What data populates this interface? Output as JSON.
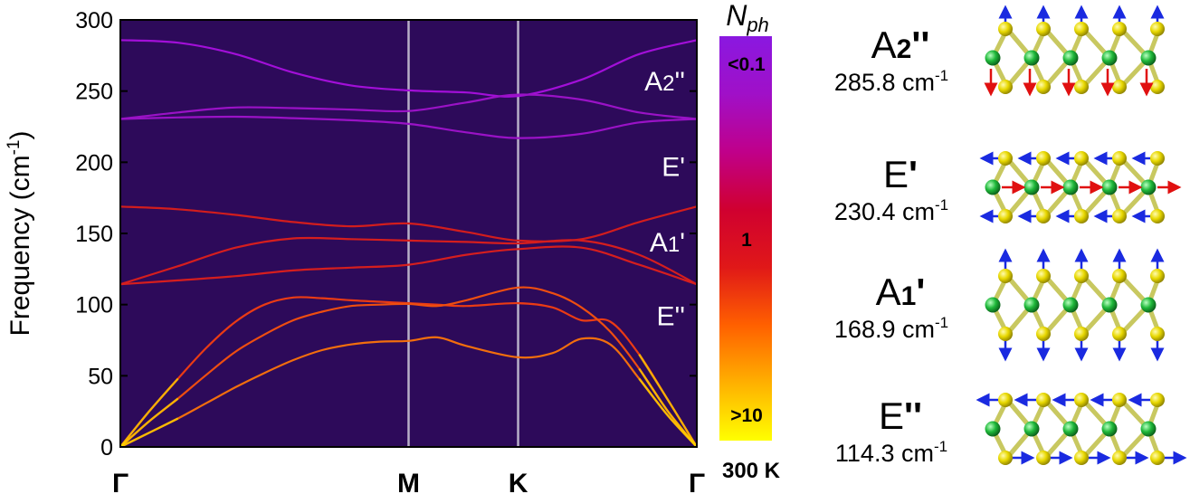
{
  "chart_data": {
    "type": "line",
    "ylabel": "Frequency (cm",
    "ylabel_sup": "-1",
    "ylabel_close": ")",
    "ylim": [
      0,
      300
    ],
    "yticks": [
      "0",
      "50",
      "100",
      "150",
      "200",
      "250",
      "300"
    ],
    "xticks": [
      "Γ",
      "M",
      "K",
      "Γ"
    ],
    "background_color": "#2d0a5a",
    "grid": false,
    "x_positions": [
      0,
      0.5,
      0.69,
      1.0
    ],
    "series": [
      {
        "mode": "A2''",
        "color": "#a20fd8",
        "x": [
          0,
          0.1,
          0.2,
          0.3,
          0.4,
          0.5,
          0.6,
          0.69,
          0.8,
          0.9,
          1.0
        ],
        "y": [
          285.8,
          284,
          276,
          263,
          254,
          250.5,
          249,
          246.5,
          258,
          276,
          285.8
        ]
      },
      {
        "color": "#9a12c6",
        "x": [
          0,
          0.1,
          0.2,
          0.3,
          0.4,
          0.5,
          0.6,
          0.69,
          0.8,
          0.9,
          1.0
        ],
        "y": [
          230.4,
          235,
          238.5,
          238,
          237,
          236,
          242,
          247.5,
          244,
          235,
          230.4
        ]
      },
      {
        "color": "#9a12c6",
        "x": [
          0,
          0.1,
          0.2,
          0.3,
          0.4,
          0.5,
          0.6,
          0.69,
          0.8,
          0.9,
          1.0
        ],
        "y": [
          230.4,
          231.5,
          232,
          231,
          229.5,
          227,
          221,
          217,
          220,
          228,
          230.4
        ]
      },
      {
        "color": "#d21d1d",
        "x": [
          0,
          0.1,
          0.2,
          0.3,
          0.4,
          0.5,
          0.6,
          0.69,
          0.8,
          0.9,
          1.0
        ],
        "y": [
          168.9,
          167,
          163,
          158,
          155,
          157,
          151,
          145,
          146,
          158,
          168.9
        ]
      },
      {
        "color": "#d51e1e",
        "x": [
          0,
          0.1,
          0.2,
          0.3,
          0.4,
          0.5,
          0.6,
          0.69,
          0.8,
          0.9,
          1.0
        ],
        "y": [
          114.3,
          127,
          140,
          146.5,
          146,
          145,
          144,
          143,
          145,
          135,
          114.3
        ]
      },
      {
        "color": "#d51e1e",
        "x": [
          0,
          0.1,
          0.2,
          0.3,
          0.4,
          0.5,
          0.6,
          0.69,
          0.8,
          0.9,
          1.0
        ],
        "y": [
          114.3,
          117,
          120,
          124,
          126,
          128,
          135,
          139,
          140,
          128,
          114.3
        ]
      },
      {
        "color": "#ea3b14",
        "x": [
          0,
          0.05,
          0.1,
          0.15,
          0.2,
          0.25,
          0.3,
          0.35,
          0.4,
          0.45,
          0.5,
          0.55,
          0.6,
          0.69,
          0.75,
          0.8,
          0.85,
          0.9,
          0.95,
          1.0
        ],
        "y": [
          0,
          25,
          48,
          70,
          88,
          100,
          105,
          104.5,
          103,
          102,
          101,
          100,
          99,
          101,
          98,
          89,
          88,
          65,
          33,
          0
        ]
      },
      {
        "color": "#ee4e10",
        "x": [
          0,
          0.05,
          0.1,
          0.15,
          0.2,
          0.25,
          0.3,
          0.35,
          0.4,
          0.45,
          0.5,
          0.55,
          0.6,
          0.69,
          0.75,
          0.8,
          0.85,
          0.9,
          0.95,
          1.0
        ],
        "y": [
          0,
          18,
          34,
          51,
          67,
          79,
          89,
          95,
          99,
          100,
          100.5,
          99,
          103,
          112,
          108,
          98,
          81,
          55,
          25,
          0
        ]
      },
      {
        "color": "#f26e0d",
        "x": [
          0,
          0.05,
          0.1,
          0.15,
          0.2,
          0.25,
          0.3,
          0.35,
          0.4,
          0.45,
          0.5,
          0.55,
          0.6,
          0.69,
          0.75,
          0.8,
          0.85,
          0.9,
          0.95,
          1.0
        ],
        "y": [
          0,
          10,
          20,
          31,
          42,
          52,
          61,
          68,
          72,
          74,
          74.5,
          77,
          71,
          63,
          66,
          76,
          72,
          48,
          22,
          0
        ]
      }
    ],
    "mode_labels": [
      {
        "text": "A",
        "sub": "2",
        "prime": "''",
        "y": 258
      },
      {
        "text": "E",
        "sub": "",
        "prime": "'",
        "y": 198
      },
      {
        "text": "A",
        "sub": "1",
        "prime": "'",
        "y": 145
      },
      {
        "text": "E",
        "sub": "",
        "prime": "''",
        "y": 93
      }
    ],
    "colorbar": {
      "title": "N",
      "title_sub": "ph",
      "labels": [
        "<0.1",
        "1",
        ">10"
      ],
      "temperature": "300 K",
      "stops": [
        "#ffff00",
        "#ffb000",
        "#ff6000",
        "#e01818",
        "#d00030",
        "#c0008a",
        "#a010c8",
        "#8a18e0"
      ]
    }
  },
  "modes": [
    {
      "name": "A",
      "sub": "2",
      "prime": "''",
      "freq": "285.8 cm",
      "sup": "-1",
      "arrows": "vertical-opposite"
    },
    {
      "name": "E",
      "sub": "",
      "prime": "'",
      "freq": "230.4 cm",
      "sup": "-1",
      "arrows": "horizontal-opposite"
    },
    {
      "name": "A",
      "sub": "1",
      "prime": "'",
      "freq": "168.9 cm",
      "sup": "-1",
      "arrows": "vertical-outward"
    },
    {
      "name": "E",
      "sub": "",
      "prime": "''",
      "freq": "114.3 cm",
      "sup": "-1",
      "arrows": "horizontal-shear"
    }
  ],
  "colors": {
    "plot_bg": "#2d0a5a",
    "vline": "#b8b0c8",
    "yellow_atom": "#e8d800",
    "green_atom": "#1fb83a",
    "arrow_blue": "#1a2ae0",
    "arrow_red": "#e01010",
    "bond": "#c8c860"
  }
}
